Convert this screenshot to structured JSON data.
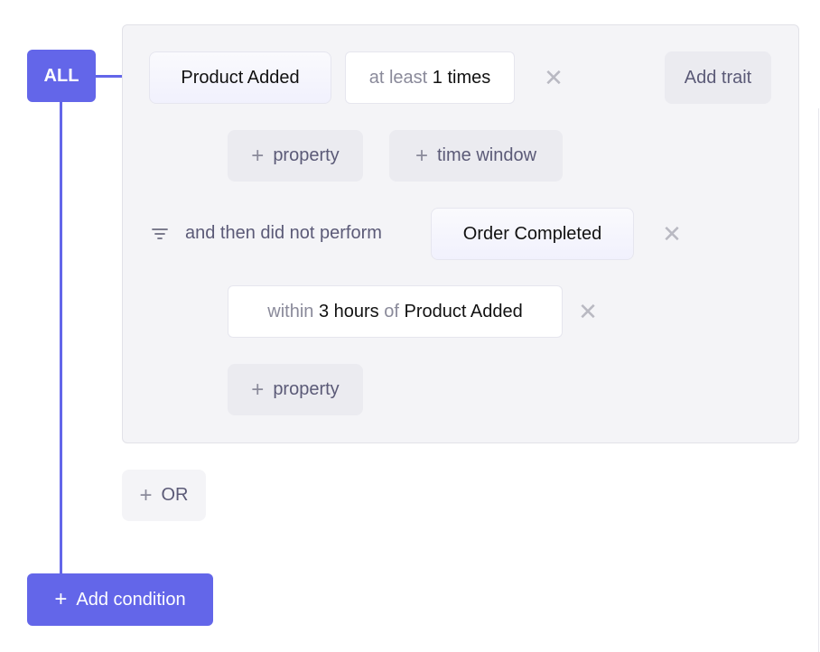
{
  "root_operator": "ALL",
  "conditions": {
    "event": "Product Added",
    "frequency": {
      "prefix": "at least",
      "value": "1 times"
    },
    "add_trait": "Add trait",
    "add_property": "property",
    "add_time_window": "time window",
    "then": {
      "label": "and then did not perform",
      "event": "Order Completed",
      "within": {
        "prefix": "within",
        "value": "3 hours",
        "of": "of",
        "ref": "Product Added"
      },
      "add_property": "property"
    }
  },
  "or_button": "OR",
  "add_condition": "Add condition",
  "colors": {
    "accent": "#6366e9",
    "panel": "#f4f4f7",
    "chip": "#ebebf0"
  }
}
